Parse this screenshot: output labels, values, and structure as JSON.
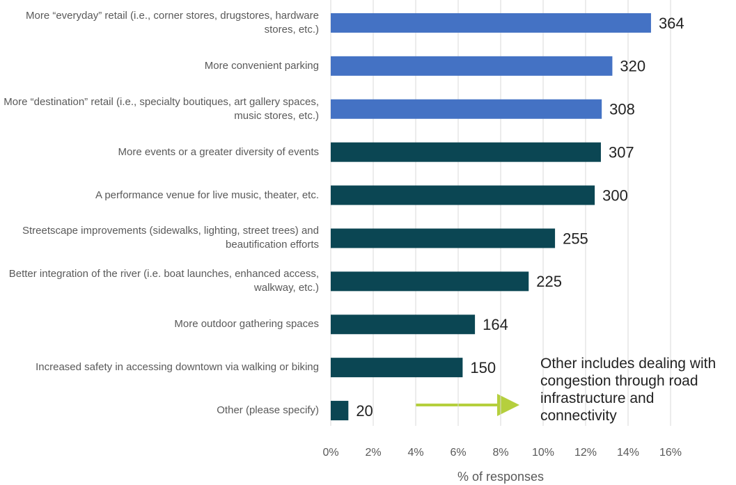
{
  "chart_data": {
    "type": "hbar",
    "categories": [
      "More “everyday” retail (i.e., corner stores, drugstores, hardware stores, etc.)",
      "More convenient parking",
      "More “destination” retail (i.e., specialty boutiques, art gallery spaces, music stores, etc.)",
      "More events or a greater diversity of events",
      "A performance venue for live music, theater, etc.",
      "Streetscape improvements (sidewalks, lighting, street trees) and beautification efforts",
      "Better integration of the river (i.e. boat launches, enhanced access, walkway, etc.)",
      "More outdoor gathering spaces",
      "Increased safety in accessing downtown via walking or biking",
      "Other (please specify)"
    ],
    "values": [
      15.08,
      13.26,
      12.76,
      12.72,
      12.43,
      10.56,
      9.32,
      6.79,
      6.21,
      0.83
    ],
    "counts": [
      364,
      320,
      308,
      307,
      300,
      255,
      225,
      164,
      150,
      20
    ],
    "colors": [
      "#4472c4",
      "#4472c4",
      "#4472c4",
      "#0b4653",
      "#0b4653",
      "#0b4653",
      "#0b4653",
      "#0b4653",
      "#0b4653",
      "#0b4653"
    ],
    "xlabel": "% of responses",
    "xlim": [
      0,
      16
    ],
    "xticks": [
      {
        "value": 0,
        "label": "0%"
      },
      {
        "value": 2,
        "label": "2%"
      },
      {
        "value": 4,
        "label": "4%"
      },
      {
        "value": 6,
        "label": "6%"
      },
      {
        "value": 8,
        "label": "8%"
      },
      {
        "value": 10,
        "label": "10%"
      },
      {
        "value": 12,
        "label": "12%"
      },
      {
        "value": 14,
        "label": "14%"
      },
      {
        "value": 16,
        "label": "16%"
      }
    ],
    "grid": true,
    "annotation": "Other includes dealing with congestion through road infrastructure and connectivity"
  }
}
